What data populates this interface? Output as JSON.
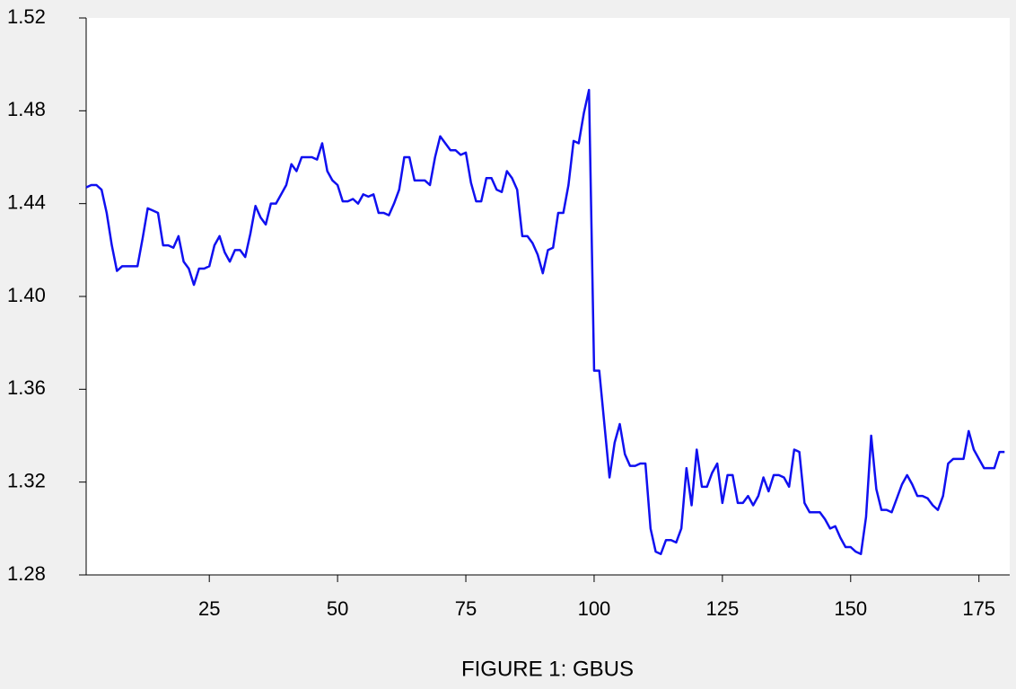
{
  "chart_data": {
    "type": "line",
    "title": "FIGURE 1: GBUS",
    "x": [
      1,
      2,
      3,
      4,
      5,
      6,
      7,
      8,
      9,
      10,
      11,
      12,
      13,
      14,
      15,
      16,
      17,
      18,
      19,
      20,
      21,
      22,
      23,
      24,
      25,
      26,
      27,
      28,
      29,
      30,
      31,
      32,
      33,
      34,
      35,
      36,
      37,
      38,
      39,
      40,
      41,
      42,
      43,
      44,
      45,
      46,
      47,
      48,
      49,
      50,
      51,
      52,
      53,
      54,
      55,
      56,
      57,
      58,
      59,
      60,
      61,
      62,
      63,
      64,
      65,
      66,
      67,
      68,
      69,
      70,
      71,
      72,
      73,
      74,
      75,
      76,
      77,
      78,
      79,
      80,
      81,
      82,
      83,
      84,
      85,
      86,
      87,
      88,
      89,
      90,
      91,
      92,
      93,
      94,
      95,
      96,
      97,
      98,
      99,
      100,
      101,
      102,
      103,
      104,
      105,
      106,
      107,
      108,
      109,
      110,
      111,
      112,
      113,
      114,
      115,
      116,
      117,
      118,
      119,
      120,
      121,
      122,
      123,
      124,
      125,
      126,
      127,
      128,
      129,
      130,
      131,
      132,
      133,
      134,
      135,
      136,
      137,
      138,
      139,
      140,
      141,
      142,
      143,
      144,
      145,
      146,
      147,
      148,
      149,
      150,
      151,
      152,
      153,
      154,
      155,
      156,
      157,
      158,
      159,
      160,
      161,
      162,
      163,
      164,
      165,
      166,
      167,
      168,
      169,
      170,
      171,
      172,
      173,
      174,
      175,
      176,
      177,
      178,
      179,
      180
    ],
    "series": [
      {
        "name": "GBUS",
        "color": "#1010f0",
        "values": [
          1.447,
          1.448,
          1.448,
          1.446,
          1.436,
          1.422,
          1.411,
          1.413,
          1.413,
          1.413,
          1.413,
          1.425,
          1.438,
          1.437,
          1.436,
          1.422,
          1.422,
          1.421,
          1.426,
          1.415,
          1.412,
          1.405,
          1.412,
          1.412,
          1.413,
          1.422,
          1.426,
          1.419,
          1.415,
          1.42,
          1.42,
          1.417,
          1.427,
          1.439,
          1.434,
          1.431,
          1.44,
          1.44,
          1.444,
          1.448,
          1.457,
          1.454,
          1.46,
          1.46,
          1.46,
          1.459,
          1.466,
          1.454,
          1.45,
          1.448,
          1.441,
          1.441,
          1.442,
          1.44,
          1.444,
          1.443,
          1.444,
          1.436,
          1.436,
          1.435,
          1.44,
          1.446,
          1.46,
          1.46,
          1.45,
          1.45,
          1.45,
          1.448,
          1.46,
          1.469,
          1.466,
          1.463,
          1.463,
          1.461,
          1.462,
          1.449,
          1.441,
          1.441,
          1.451,
          1.451,
          1.446,
          1.445,
          1.454,
          1.451,
          1.446,
          1.426,
          1.426,
          1.423,
          1.418,
          1.41,
          1.42,
          1.421,
          1.436,
          1.436,
          1.448,
          1.467,
          1.466,
          1.479,
          1.489,
          1.368,
          1.368,
          1.345,
          1.322,
          1.337,
          1.345,
          1.332,
          1.327,
          1.327,
          1.328,
          1.328,
          1.3,
          1.29,
          1.289,
          1.295,
          1.295,
          1.294,
          1.3,
          1.326,
          1.31,
          1.334,
          1.318,
          1.318,
          1.324,
          1.328,
          1.311,
          1.323,
          1.323,
          1.311,
          1.311,
          1.314,
          1.31,
          1.314,
          1.322,
          1.316,
          1.323,
          1.323,
          1.322,
          1.318,
          1.334,
          1.333,
          1.311,
          1.307,
          1.307,
          1.307,
          1.304,
          1.3,
          1.301,
          1.296,
          1.292,
          1.292,
          1.29,
          1.289,
          1.305,
          1.34,
          1.317,
          1.308,
          1.308,
          1.307,
          1.313,
          1.319,
          1.323,
          1.319,
          1.314,
          1.314,
          1.313,
          1.31,
          1.308,
          1.314,
          1.328,
          1.33,
          1.33,
          1.33,
          1.342,
          1.334,
          1.33,
          1.326,
          1.326,
          1.326,
          1.333,
          1.333
        ]
      }
    ],
    "xlim": [
      1,
      181
    ],
    "xticks": [
      25,
      50,
      75,
      100,
      125,
      150,
      175
    ],
    "ylim": [
      1.28,
      1.52
    ],
    "yticks": [
      1.52,
      1.48,
      1.44,
      {
        "value": 1.4,
        "label": "1.40"
      },
      1.36,
      1.32,
      1.28
    ],
    "grid": false
  }
}
